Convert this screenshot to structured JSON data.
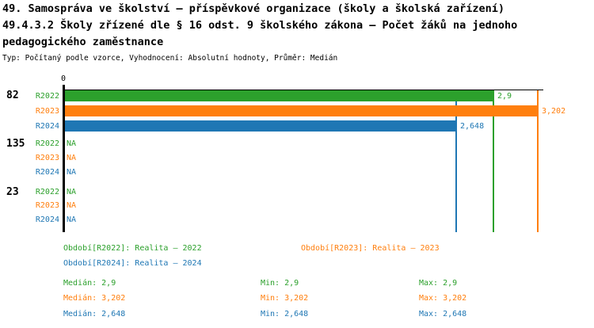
{
  "title": {
    "line1": "49. Samospráva ve školství – příspěvkové organizace (školy a školská zařízení)",
    "line2": "49.4.3.2 Školy zřízené dle § 16 odst. 9 školského zákona – Počet žáků na jednoho",
    "line3": "pedagogického zaměstnance",
    "meta": "Typ: Počítaný podle vzorce, Vyhodnocení: Absolutní hodnoty, Průměr: Medián"
  },
  "colors": {
    "r2022": "#2ca02c",
    "r2023": "#ff7f0e",
    "r2024": "#1f77b4",
    "axis": "#000000",
    "background": "#ffffff"
  },
  "chart_data": {
    "type": "bar",
    "orientation": "horizontal",
    "x_axis": {
      "zero_label": "0",
      "min": 0,
      "max_visible": 3.58,
      "grid": false
    },
    "series_names": [
      "R2022",
      "R2023",
      "R2024"
    ],
    "groups": [
      {
        "category": "82",
        "values": [
          {
            "series": "R2022",
            "value": 2.9,
            "label": "2,9"
          },
          {
            "series": "R2023",
            "value": 3.202,
            "label": "3,202"
          },
          {
            "series": "R2024",
            "value": 2.648,
            "label": "2,648"
          }
        ]
      },
      {
        "category": "135",
        "values": [
          {
            "series": "R2022",
            "value": null,
            "label": "NA"
          },
          {
            "series": "R2023",
            "value": null,
            "label": "NA"
          },
          {
            "series": "R2024",
            "value": null,
            "label": "NA"
          }
        ]
      },
      {
        "category": "23",
        "values": [
          {
            "series": "R2022",
            "value": null,
            "label": "NA"
          },
          {
            "series": "R2023",
            "value": null,
            "label": "NA"
          },
          {
            "series": "R2024",
            "value": null,
            "label": "NA"
          }
        ]
      }
    ],
    "median_lines": [
      {
        "series": "R2022",
        "value": 2.9
      },
      {
        "series": "R2023",
        "value": 3.202
      },
      {
        "series": "R2024",
        "value": 2.648
      }
    ]
  },
  "legend": {
    "r2022": "Období[R2022]: Realita – 2022",
    "r2023": "Období[R2023]: Realita – 2023",
    "r2024": "Období[R2024]: Realita – 2024"
  },
  "stats": {
    "r2022": {
      "median": "Medián: 2,9",
      "min": "Min: 2,9",
      "max": "Max: 2,9"
    },
    "r2023": {
      "median": "Medián: 3,202",
      "min": "Min: 3,202",
      "max": "Max: 3,202"
    },
    "r2024": {
      "median": "Medián: 2,648",
      "min": "Min: 2,648",
      "max": "Max: 2,648"
    }
  }
}
